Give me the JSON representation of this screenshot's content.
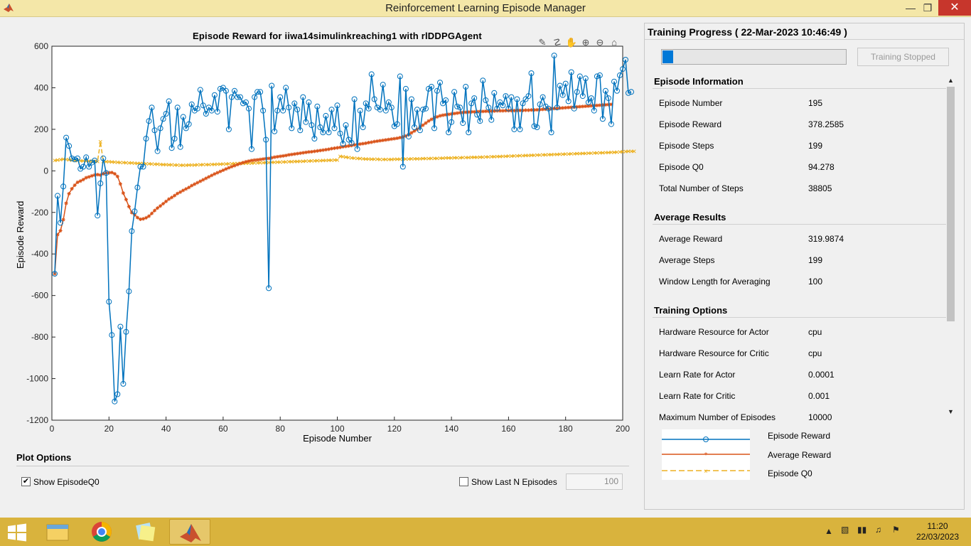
{
  "window": {
    "title": "Reinforcement Learning Episode Manager"
  },
  "chart_data": {
    "type": "line",
    "title": "Episode Reward for iiwa14_simulink_reaching1 with rlDDPGAgent",
    "title_display": "Episode Reward  for  iiwa14simulinkreaching1  with  rlDDPGAgent",
    "xlabel": "Episode Number",
    "ylabel": "Episode Reward",
    "xlim": [
      0,
      200
    ],
    "ylim": [
      -1200,
      600
    ],
    "xticks": [
      0,
      20,
      40,
      60,
      80,
      100,
      120,
      140,
      160,
      180,
      200
    ],
    "yticks": [
      -1200,
      -1000,
      -800,
      -600,
      -400,
      -200,
      0,
      200,
      400,
      600
    ],
    "series": [
      {
        "name": "Episode Reward",
        "color": "#0072bd",
        "marker": "o",
        "values": [
          -495,
          -120,
          -250,
          -75,
          160,
          120,
          60,
          55,
          60,
          10,
          20,
          65,
          20,
          40,
          50,
          -215,
          -60,
          60,
          -10,
          -630,
          -790,
          -1110,
          -1075,
          -750,
          -1025,
          -775,
          -580,
          -290,
          -195,
          -80,
          20,
          20,
          155,
          240,
          305,
          195,
          95,
          205,
          250,
          275,
          335,
          110,
          155,
          305,
          115,
          260,
          205,
          225,
          320,
          290,
          300,
          390,
          315,
          275,
          305,
          290,
          365,
          285,
          395,
          400,
          385,
          200,
          355,
          385,
          355,
          355,
          325,
          330,
          300,
          105,
          355,
          380,
          380,
          290,
          150,
          -565,
          410,
          190,
          290,
          355,
          290,
          400,
          305,
          205,
          325,
          295,
          195,
          355,
          235,
          330,
          220,
          155,
          310,
          210,
          185,
          265,
          185,
          295,
          205,
          315,
          180,
          130,
          220,
          150,
          135,
          345,
          105,
          290,
          210,
          325,
          300,
          465,
          345,
          305,
          295,
          415,
          290,
          330,
          305,
          215,
          225,
          455,
          20,
          395,
          165,
          345,
          210,
          295,
          195,
          295,
          300,
          395,
          405,
          205,
          385,
          425,
          325,
          340,
          185,
          235,
          380,
          310,
          305,
          230,
          405,
          185,
          325,
          350,
          270,
          240,
          435,
          340,
          305,
          245,
          375,
          300,
          330,
          315,
          360,
          300,
          355,
          200,
          345,
          200,
          325,
          345,
          360,
          470,
          215,
          210,
          320,
          355,
          310,
          300,
          185,
          555,
          305,
          410,
          365,
          420,
          335,
          475,
          300,
          380,
          455,
          360,
          445,
          330,
          350,
          290,
          455,
          460,
          250,
          385,
          350,
          225,
          430,
          385,
          460,
          490,
          535,
          375,
          380
        ]
      },
      {
        "name": "Average Reward",
        "color": "#d95319",
        "marker": "*",
        "values": [
          -495,
          -307,
          -288,
          -235,
          -156,
          -110,
          -86,
          -69,
          -55,
          -49,
          -42,
          -33,
          -29,
          -24,
          -20,
          -18,
          -20,
          -14,
          -10,
          -9,
          -8,
          -14,
          -27,
          -63,
          -107,
          -138,
          -172,
          -201,
          -211,
          -225,
          -233,
          -231,
          -226,
          -218,
          -205,
          -191,
          -179,
          -169,
          -158,
          -147,
          -136,
          -128,
          -119,
          -109,
          -102,
          -94,
          -87,
          -80,
          -71,
          -64,
          -57,
          -50,
          -43,
          -36,
          -29,
          -22,
          -15,
          -9,
          -3,
          3,
          9,
          15,
          20,
          25,
          30,
          35,
          40,
          44,
          47,
          50,
          52,
          53,
          55,
          57,
          59,
          60,
          63,
          66,
          68,
          70,
          72,
          74,
          77,
          79,
          81,
          83,
          85,
          87,
          89,
          91,
          92,
          94,
          96,
          98,
          100,
          102,
          104,
          107,
          109,
          111,
          113,
          116,
          118,
          120,
          122,
          125,
          127,
          129,
          131,
          133,
          136,
          138,
          141,
          143,
          145,
          147,
          149,
          151,
          153,
          155,
          157,
          160,
          163,
          168,
          175,
          183,
          192,
          200,
          210,
          220,
          230,
          240,
          248,
          255,
          260,
          265,
          268,
          270,
          272,
          274,
          276,
          278,
          280,
          281,
          282,
          283,
          284,
          284,
          285,
          286,
          286,
          287,
          287,
          288,
          288,
          289,
          289,
          289,
          290,
          290,
          290,
          290,
          291,
          291,
          291,
          292,
          292,
          293,
          293,
          294,
          295,
          296,
          297,
          298,
          299,
          300,
          301,
          302,
          303,
          304,
          305,
          306,
          307,
          308,
          309,
          310,
          311,
          312,
          313,
          314,
          315,
          316,
          317,
          318,
          319,
          320
        ]
      },
      {
        "name": "Episode Q0",
        "color": "#edb120",
        "marker": "x",
        "values": [
          50,
          52,
          54,
          56,
          55,
          53,
          51,
          50,
          49,
          48,
          48,
          47,
          47,
          46,
          46,
          45,
          140,
          45,
          44,
          44,
          43,
          42,
          41,
          40,
          40,
          39,
          38,
          38,
          37,
          36,
          36,
          35,
          34,
          34,
          33,
          32,
          32,
          31,
          30,
          30,
          29,
          29,
          28,
          28,
          27,
          27,
          27,
          28,
          28,
          28,
          29,
          29,
          30,
          30,
          30,
          31,
          31,
          32,
          32,
          33,
          33,
          34,
          34,
          35,
          35,
          36,
          36,
          37,
          37,
          37,
          38,
          38,
          39,
          39,
          40,
          40,
          41,
          41,
          42,
          42,
          43,
          43,
          44,
          44,
          45,
          45,
          46,
          46,
          47,
          47,
          48,
          48,
          49,
          49,
          50,
          50,
          51,
          51,
          52,
          52,
          70,
          68,
          66,
          64,
          62,
          61,
          60,
          59,
          58,
          57,
          57,
          56,
          56,
          56,
          55,
          55,
          55,
          55,
          55,
          56,
          56,
          56,
          57,
          57,
          57,
          58,
          58,
          58,
          58,
          59,
          59,
          59,
          60,
          60,
          60,
          61,
          61,
          62,
          62,
          62,
          63,
          63,
          63,
          64,
          64,
          64,
          65,
          65,
          65,
          66,
          66,
          67,
          67,
          68,
          68,
          69,
          69,
          70,
          70,
          71,
          71,
          72,
          72,
          73,
          73,
          74,
          74,
          75,
          75,
          76,
          76,
          77,
          77,
          78,
          78,
          79,
          79,
          80,
          80,
          81,
          81,
          82,
          82,
          83,
          83,
          84,
          84,
          85,
          85,
          86,
          86,
          87,
          87,
          88,
          88,
          89,
          89,
          90,
          91,
          92,
          93,
          94,
          94,
          94
        ]
      }
    ],
    "grid": false,
    "legend_position": "outside-bottom-right"
  },
  "toolbar_icons": [
    "brush-icon",
    "data-tip-icon",
    "pan-icon",
    "zoom-in-icon",
    "zoom-out-icon",
    "home-icon"
  ],
  "plot_options": {
    "title": "Plot Options",
    "show_q0_label": "Show EpisodeQ0",
    "show_q0_checked": true,
    "show_last_n_label": "Show Last N Episodes",
    "show_last_n_checked": false,
    "last_n_value": "100"
  },
  "progress": {
    "title": "Training Progress ( 22-Mar-2023 10:46:49 )",
    "fraction": 0.0195,
    "stop_label": "Training Stopped"
  },
  "episode_information": {
    "title": "Episode Information",
    "rows": [
      {
        "k": "Episode Number",
        "v": "195"
      },
      {
        "k": "Episode Reward",
        "v": "378.2585"
      },
      {
        "k": "Episode Steps",
        "v": "199"
      },
      {
        "k": "Episode Q0",
        "v": "94.278"
      },
      {
        "k": "Total Number of Steps",
        "v": "38805"
      }
    ]
  },
  "average_results": {
    "title": "Average Results",
    "rows": [
      {
        "k": "Average Reward",
        "v": "319.9874"
      },
      {
        "k": "Average Steps",
        "v": "199"
      },
      {
        "k": "Window Length for Averaging",
        "v": "100"
      }
    ]
  },
  "training_options": {
    "title": "Training Options",
    "rows": [
      {
        "k": "Hardware Resource for Actor",
        "v": "cpu"
      },
      {
        "k": "Hardware Resource for Critic",
        "v": "cpu"
      },
      {
        "k": "Learn Rate for Actor",
        "v": "0.0001"
      },
      {
        "k": "Learn Rate for Critic",
        "v": "0.001"
      },
      {
        "k": "Maximum Number of Episodes",
        "v": "10000"
      }
    ]
  },
  "legend": {
    "items": [
      "Episode Reward",
      "Average Reward",
      "Episode Q0"
    ]
  },
  "taskbar": {
    "apps": [
      "file-explorer-icon",
      "chrome-icon",
      "sticky-notes-icon",
      "matlab-icon"
    ],
    "time": "11:20",
    "date": "22/03/2023"
  },
  "colors": {
    "titlebar": "#f4e7a8",
    "taskbar": "#d9b33d",
    "close": "#c7362c"
  }
}
